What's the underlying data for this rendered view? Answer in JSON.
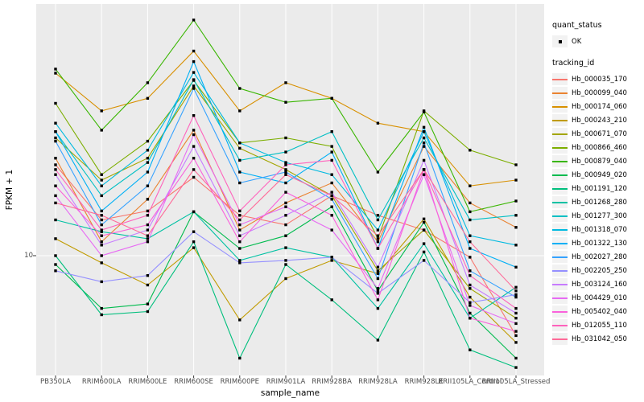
{
  "chart": {
    "legend": {
      "quant_status_title": "quant_status",
      "quant_status_items": [
        {
          "label": "OK",
          "key": "black-point"
        }
      ],
      "tracking_id_title": "tracking_id"
    }
  },
  "chart_data": {
    "type": "line",
    "title": "",
    "xlabel": "sample_name",
    "ylabel": "FPKM + 1",
    "y_scale": "log10",
    "y_tick_labels": [
      "10"
    ],
    "ylim": [
      2.2,
      230
    ],
    "grid": "major",
    "legend_position": "right",
    "panel_bg": "#EBEBEB",
    "grid_color": "#FFFFFF",
    "tick_color": "#333333",
    "point_color": "#000000",
    "point_shape": "small-black-square",
    "categories": [
      "PB350LA",
      "RRIM600LA",
      "RRIM600LE",
      "RRIM600SE",
      "RRIM600PE",
      "RRIM901LA",
      "RRIM928BA",
      "RRIM928LA",
      "RRIM928LE",
      "RRII105LA_Control",
      "RRII105LA_Stressed"
    ],
    "series": [
      {
        "name": "Hb_000035_170",
        "color": "#F8766D",
        "values": [
          33,
          16,
          18,
          28,
          17,
          15,
          22,
          17,
          14,
          9.8,
          3.5
        ]
      },
      {
        "name": "Hb_000099_040",
        "color": "#EA8331",
        "values": [
          36,
          12,
          21,
          52,
          14,
          20,
          26,
          12,
          42,
          20,
          14.5
        ]
      },
      {
        "name": "Hb_000174_060",
        "color": "#D89000",
        "values": [
          110,
          67,
          79,
          147,
          67,
          97,
          79,
          57,
          51,
          25,
          27
        ]
      },
      {
        "name": "Hb_000243_210",
        "color": "#C09B00",
        "values": [
          12.5,
          9.1,
          6.8,
          11.1,
          4.3,
          7.4,
          9.4,
          7.9,
          16.2,
          5.8,
          3.2
        ]
      },
      {
        "name": "Hb_000671_070",
        "color": "#A3A500",
        "values": [
          47,
          27,
          36,
          93,
          41,
          31,
          22,
          8.2,
          14,
          6.5,
          4.4
        ]
      },
      {
        "name": "Hb_000866_460",
        "color": "#7CAE00",
        "values": [
          74,
          29,
          45,
          100,
          44,
          47,
          42,
          12.5,
          67,
          40,
          33
        ]
      },
      {
        "name": "Hb_000879_040",
        "color": "#39B600",
        "values": [
          116,
          52,
          97,
          221,
          90,
          75,
          79,
          30,
          66,
          17.8,
          20.5
        ]
      },
      {
        "name": "Hb_000949_020",
        "color": "#00BB4E",
        "values": [
          8.9,
          5,
          5.3,
          17.8,
          11,
          13,
          19,
          6.3,
          15.5,
          4.7,
          2.6
        ]
      },
      {
        "name": "Hb_001191_120",
        "color": "#00BF7D",
        "values": [
          10,
          4.6,
          4.8,
          12,
          2.6,
          8.9,
          5.6,
          3.3,
          10.5,
          2.9,
          2.3
        ]
      },
      {
        "name": "Hb_001268_280",
        "color": "#00C1A3",
        "values": [
          16,
          13.7,
          12.5,
          17.8,
          9.4,
          11.1,
          9.8,
          5,
          11.7,
          4.4,
          6.6
        ]
      },
      {
        "name": "Hb_001277_300",
        "color": "#00BFC4",
        "values": [
          51,
          22,
          34,
          101,
          35,
          39,
          51,
          16,
          47,
          16,
          17
        ]
      },
      {
        "name": "Hb_001318_070",
        "color": "#00BAE0",
        "values": [
          57,
          25,
          40,
          111,
          44,
          34,
          29,
          14,
          51,
          13,
          11.5
        ]
      },
      {
        "name": "Hb_001322_130",
        "color": "#00B0F6",
        "values": [
          51,
          18,
          30,
          128,
          30,
          26,
          39,
          11,
          54,
          11,
          8.6
        ]
      },
      {
        "name": "Hb_002027_280",
        "color": "#35A2FF",
        "values": [
          45,
          15,
          25,
          90,
          26,
          30,
          21,
          7.4,
          44,
          8.2,
          5.8
        ]
      },
      {
        "name": "Hb_002205_250",
        "color": "#9590FF",
        "values": [
          8.2,
          7.1,
          7.7,
          13.7,
          9.1,
          9.4,
          9.8,
          6.1,
          9.4,
          5.4,
          6
        ]
      },
      {
        "name": "Hb_003124_160",
        "color": "#C77CFF",
        "values": [
          29,
          11.5,
          14,
          42,
          13,
          17,
          23,
          8.6,
          35,
          6.8,
          4.7
        ]
      },
      {
        "name": "Hb_004429_010",
        "color": "#E76BF3",
        "values": [
          22,
          10,
          12,
          49,
          15,
          19,
          14,
          6.5,
          29,
          5.2,
          4.1
        ]
      },
      {
        "name": "Hb_005402_040",
        "color": "#FA62DB",
        "values": [
          25,
          13,
          15,
          36,
          12,
          23,
          17,
          5.6,
          31,
          4.4,
          3.7
        ]
      },
      {
        "name": "Hb_012055_110",
        "color": "#FF62BC",
        "values": [
          31,
          14,
          17,
          63,
          18,
          33,
          35,
          11,
          31,
          7.7,
          5
        ]
      },
      {
        "name": "Hb_031042_050",
        "color": "#FF6A98",
        "values": [
          20,
          17,
          13,
          31,
          16,
          29,
          22,
          13,
          31,
          12,
          6.3
        ]
      }
    ]
  }
}
